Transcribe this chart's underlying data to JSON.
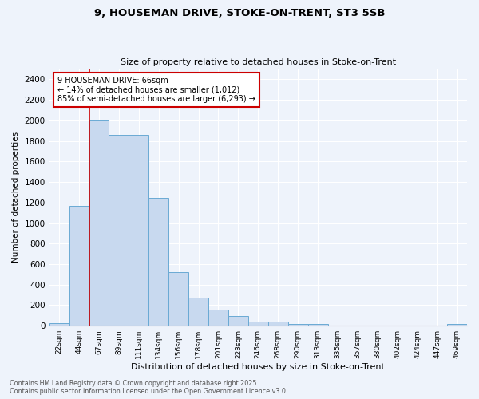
{
  "title1": "9, HOUSEMAN DRIVE, STOKE-ON-TRENT, ST3 5SB",
  "title2": "Size of property relative to detached houses in Stoke-on-Trent",
  "xlabel": "Distribution of detached houses by size in Stoke-on-Trent",
  "ylabel": "Number of detached properties",
  "categories": [
    "22sqm",
    "44sqm",
    "67sqm",
    "89sqm",
    "111sqm",
    "134sqm",
    "156sqm",
    "178sqm",
    "201sqm",
    "223sqm",
    "246sqm",
    "268sqm",
    "290sqm",
    "313sqm",
    "335sqm",
    "357sqm",
    "380sqm",
    "402sqm",
    "424sqm",
    "447sqm",
    "469sqm"
  ],
  "values": [
    28,
    1170,
    2000,
    1860,
    1860,
    1245,
    520,
    275,
    155,
    95,
    42,
    42,
    18,
    18,
    5,
    5,
    5,
    5,
    5,
    5,
    18
  ],
  "bar_color": "#c8d9ef",
  "bar_edge_color": "#6aaad4",
  "vline_color": "#cc0000",
  "annotation_text": "9 HOUSEMAN DRIVE: 66sqm\n← 14% of detached houses are smaller (1,012)\n85% of semi-detached houses are larger (6,293) →",
  "annotation_box_color": "#ffffff",
  "annotation_box_edge_color": "#cc0000",
  "ylim": [
    0,
    2500
  ],
  "yticks": [
    0,
    200,
    400,
    600,
    800,
    1000,
    1200,
    1400,
    1600,
    1800,
    2000,
    2200,
    2400
  ],
  "footnote1": "Contains HM Land Registry data © Crown copyright and database right 2025.",
  "footnote2": "Contains public sector information licensed under the Open Government Licence v3.0.",
  "bg_color": "#eef3fb",
  "plot_bg_color": "#eef3fb"
}
